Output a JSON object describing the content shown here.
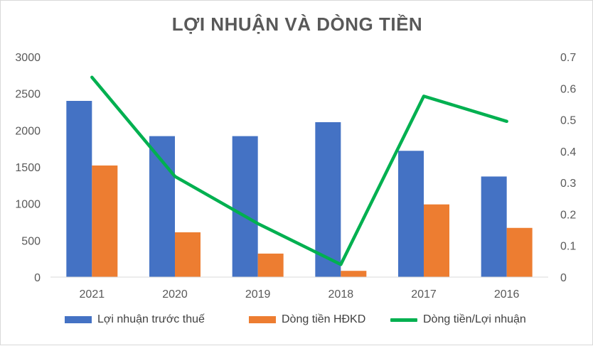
{
  "chart_data": {
    "type": "bar",
    "title": "LỢI NHUẬN VÀ DÒNG TIỀN",
    "categories": [
      "2021",
      "2020",
      "2019",
      "2018",
      "2017",
      "2016"
    ],
    "series": [
      {
        "name": "Lợi nhuận trước thuế",
        "type": "bar",
        "axis": "left",
        "color": "#4472c4",
        "values": [
          2400,
          1920,
          1920,
          2110,
          1720,
          1370
        ]
      },
      {
        "name": "Dòng tiền HĐKD",
        "type": "bar",
        "axis": "left",
        "color": "#ed7d31",
        "values": [
          1520,
          610,
          320,
          85,
          990,
          670
        ]
      },
      {
        "name": "Dòng tiền/Lợi nhuận",
        "type": "line",
        "axis": "right",
        "color": "#00b050",
        "values": [
          0.635,
          0.32,
          0.17,
          0.04,
          0.575,
          0.495
        ]
      }
    ],
    "left_axis": {
      "ylim": [
        0,
        3000
      ],
      "ticks": [
        0,
        500,
        1000,
        1500,
        2000,
        2500,
        3000
      ],
      "tick_labels": [
        "0",
        "500",
        "1000",
        "1500",
        "2000",
        "2500",
        "3000"
      ]
    },
    "right_axis": {
      "ylim": [
        0,
        0.7
      ],
      "ticks": [
        0,
        0.1,
        0.2,
        0.3,
        0.4,
        0.5,
        0.6,
        0.7
      ],
      "tick_labels": [
        "0",
        "0.1",
        "0.2",
        "0.3",
        "0.4",
        "0.5",
        "0.6",
        "0.7"
      ]
    },
    "grid": false,
    "legend_position": "bottom"
  }
}
